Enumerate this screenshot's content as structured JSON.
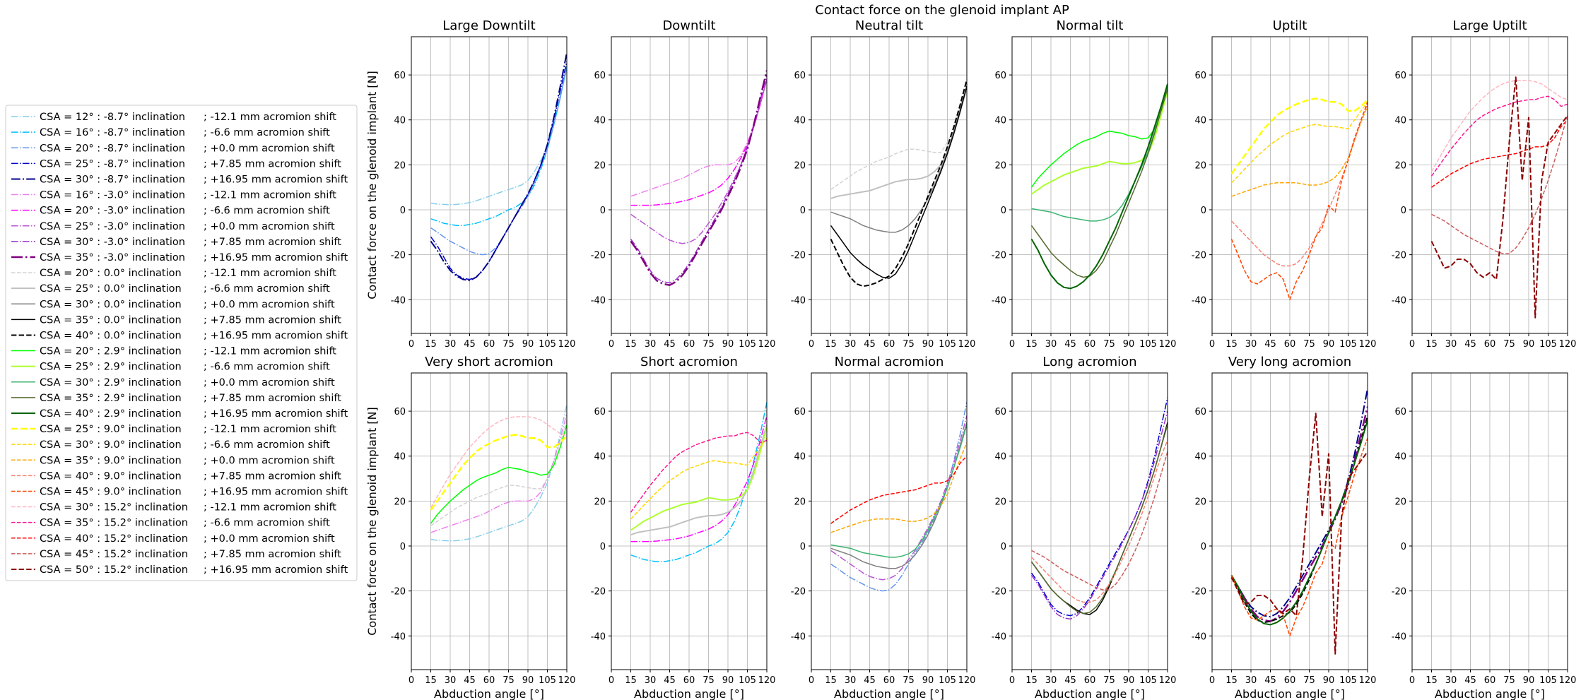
{
  "figure_title": "Contact force on the glenoid implant AP",
  "chart_data": {
    "type": "line",
    "title": "Contact force on the glenoid implant AP",
    "shared_axes": {
      "xlabel": "Abduction angle [°]",
      "ylabel": "Contact force on the glenoid implant [N]",
      "xlim": [
        0,
        120
      ],
      "ylim": [
        -55,
        77
      ],
      "xticks": [
        0,
        15,
        30,
        45,
        60,
        75,
        90,
        105,
        120
      ],
      "yticks": [
        -40,
        -20,
        0,
        20,
        40,
        60
      ],
      "grid": true
    },
    "x": [
      15,
      20,
      25,
      30,
      35,
      40,
      45,
      50,
      55,
      60,
      65,
      70,
      75,
      80,
      85,
      90,
      95,
      100,
      105,
      110,
      115,
      120
    ],
    "series": [
      {
        "name": "CSA = 12° : -8.7° inclination    ; -12.1 mm acromion shift",
        "color": "#87ceeb",
        "dash": "dashdot",
        "width": 1.5,
        "values": [
          3,
          2.5,
          2.4,
          2.3,
          2.4,
          2.7,
          3.2,
          4,
          5,
          6,
          7,
          8,
          9,
          10,
          11,
          13,
          17,
          22,
          28,
          38,
          50,
          63
        ]
      },
      {
        "name": "CSA = 16° : -8.7° inclination    ; -6.6 mm acromion shift",
        "color": "#00bfff",
        "dash": "dashdot",
        "width": 1.5,
        "values": [
          -4,
          -5,
          -6,
          -6.5,
          -7,
          -7,
          -6.5,
          -6,
          -5,
          -4,
          -3,
          -1.5,
          0,
          1,
          3,
          6,
          11,
          18,
          27,
          38,
          50,
          64
        ]
      },
      {
        "name": "CSA = 20° : -8.7° inclination    ; +0.0 mm acromion shift",
        "color": "#6495ed",
        "dash": "dashdot",
        "width": 1.5,
        "values": [
          -8,
          -10,
          -12,
          -14,
          -15.5,
          -17,
          -18.5,
          -19.5,
          -20,
          -19.5,
          -17,
          -13,
          -8,
          -3,
          1,
          6,
          12,
          19,
          27,
          38,
          50,
          64
        ]
      },
      {
        "name": "CSA = 25° : -8.7° inclination    ; +7.85 mm acromion shift",
        "color": "#0000cd",
        "dash": "dashdot",
        "width": 1.5,
        "values": [
          -12,
          -16,
          -21,
          -26,
          -29,
          -30.5,
          -31,
          -30,
          -27,
          -23,
          -18,
          -13,
          -8,
          -3,
          2,
          7,
          13,
          20,
          29,
          40,
          53,
          66
        ]
      },
      {
        "name": "CSA = 30° : -8.7° inclination    ; +16.95 mm acromion shift",
        "color": "#00008b",
        "dash": "dashdot",
        "width": 2,
        "values": [
          -14,
          -18,
          -23,
          -27,
          -29.5,
          -31,
          -31.5,
          -30,
          -27,
          -23,
          -18,
          -13,
          -8,
          -3,
          2,
          7,
          13,
          20,
          29,
          41,
          55,
          70
        ]
      },
      {
        "name": "CSA = 16° : -3.0° inclination    ; -12.1 mm acromion shift",
        "color": "#ee82ee",
        "dash": "dashdot",
        "width": 1.5,
        "values": [
          6,
          7,
          8,
          9,
          10,
          11,
          12,
          13,
          14,
          15.5,
          17,
          18.5,
          19.5,
          20,
          20,
          20,
          21,
          24,
          30,
          38,
          48,
          59
        ]
      },
      {
        "name": "CSA = 20° : -3.0° inclination    ; -6.6 mm acromion shift",
        "color": "#ff00ff",
        "dash": "dashdot",
        "width": 1.5,
        "values": [
          2,
          2,
          2,
          2,
          2.2,
          2.5,
          2.8,
          3.2,
          3.8,
          4.5,
          5.5,
          6.5,
          7.5,
          9,
          11,
          14,
          18,
          23,
          29,
          37,
          47,
          58
        ]
      },
      {
        "name": "CSA = 25° : -3.0° inclination    ; +0.0 mm acromion shift",
        "color": "#ba55d3",
        "dash": "dashdot",
        "width": 1.5,
        "values": [
          -2,
          -4,
          -6,
          -8,
          -10,
          -12,
          -13.5,
          -14.5,
          -15,
          -14.5,
          -13,
          -10,
          -6,
          -2,
          3,
          8,
          14,
          20,
          28,
          37,
          47,
          58
        ]
      },
      {
        "name": "CSA = 30° : -3.0° inclination    ; +7.85 mm acromion shift",
        "color": "#9932cc",
        "dash": "dashdot",
        "width": 1.5,
        "values": [
          -13,
          -17,
          -22,
          -27,
          -30.5,
          -32,
          -32.5,
          -31,
          -28,
          -24,
          -19,
          -14,
          -9,
          -4,
          1,
          7,
          13,
          20,
          28,
          38,
          49,
          60
        ]
      },
      {
        "name": "CSA = 35° : -3.0° inclination    ; +16.95 mm acromion shift",
        "color": "#800080",
        "dash": "dashdot",
        "width": 2.5,
        "values": [
          -14,
          -18,
          -23,
          -28,
          -31.5,
          -33,
          -33.5,
          -32,
          -29,
          -25,
          -20,
          -15,
          -10,
          -5,
          0,
          6,
          12,
          19,
          27,
          38,
          50,
          62
        ]
      },
      {
        "name": "CSA = 20° : 0.0° inclination    ; -12.1 mm acromion shift",
        "color": "#d3d3d3",
        "dash": "dashed",
        "width": 1.5,
        "values": [
          9,
          11,
          13,
          15,
          17,
          18.5,
          20,
          21.5,
          22.5,
          23.5,
          25,
          26,
          27,
          27,
          26.5,
          26,
          25.5,
          25.5,
          30,
          37,
          46,
          56
        ]
      },
      {
        "name": "CSA = 25° : 0.0° inclination    ; -6.6 mm acromion shift",
        "color": "#c0c0c0",
        "dash": "solid",
        "width": 2,
        "values": [
          5,
          6,
          6.5,
          7,
          7.5,
          8,
          8.5,
          9.5,
          10.5,
          11.5,
          12.5,
          13,
          13.5,
          13.5,
          14,
          15,
          17,
          20,
          25,
          34,
          44,
          54
        ]
      },
      {
        "name": "CSA = 30° : 0.0° inclination    ; +0.0 mm acromion shift",
        "color": "#808080",
        "dash": "solid",
        "width": 1.5,
        "values": [
          -1,
          -2,
          -3,
          -4,
          -5.5,
          -7,
          -8,
          -9,
          -9.5,
          -10,
          -10,
          -9,
          -7,
          -4,
          0,
          5,
          11,
          18,
          26,
          35,
          45,
          55
        ]
      },
      {
        "name": "CSA = 35° : 0.0° inclination    ; +7.85 mm acromion shift",
        "color": "#000000",
        "dash": "solid",
        "width": 1.5,
        "values": [
          -7,
          -11,
          -15,
          -19,
          -22,
          -24.5,
          -26.5,
          -28.5,
          -30,
          -30.5,
          -28.5,
          -24,
          -18,
          -11,
          -4,
          3,
          10,
          17,
          25,
          34,
          44,
          55
        ]
      },
      {
        "name": "CSA = 40° : 0.0° inclination    ; +16.95 mm acromion shift",
        "color": "#000000",
        "dash": "dashed",
        "width": 2,
        "values": [
          -13,
          -19,
          -25,
          -30,
          -33,
          -34,
          -33.5,
          -32.5,
          -31,
          -29.5,
          -26,
          -21,
          -15,
          -8,
          -1,
          6,
          13,
          20,
          28,
          37,
          47,
          58
        ]
      },
      {
        "name": "CSA = 20° : 2.9° inclination    ; -12.1 mm acromion shift",
        "color": "#00ff00",
        "dash": "solid",
        "width": 1.5,
        "values": [
          10,
          14,
          17,
          20,
          22.5,
          25,
          27,
          29,
          30.5,
          31.5,
          32.5,
          34,
          35,
          34.5,
          34,
          33,
          32.5,
          31.5,
          32,
          36,
          44,
          54
        ]
      },
      {
        "name": "CSA = 25° : 2.9° inclination    ; -6.6 mm acromion shift",
        "color": "#adff2f",
        "dash": "solid",
        "width": 2,
        "values": [
          7,
          9,
          11,
          12.5,
          14,
          15.5,
          16.5,
          17.5,
          18.5,
          19,
          19.5,
          20.5,
          21.5,
          21,
          20.5,
          20.5,
          21,
          22,
          25,
          32,
          42,
          53
        ]
      },
      {
        "name": "CSA = 30° : 2.9° inclination    ; +0.0 mm acromion shift",
        "color": "#3cb371",
        "dash": "solid",
        "width": 1.5,
        "values": [
          0.5,
          0,
          -0.5,
          -1,
          -2,
          -3,
          -3.5,
          -4,
          -4.5,
          -5,
          -5,
          -4.5,
          -3.5,
          -1.5,
          2,
          7,
          13,
          19,
          26,
          35,
          44,
          54
        ]
      },
      {
        "name": "CSA = 35° : 2.9° inclination    ; +7.85 mm acromion shift",
        "color": "#556b2f",
        "dash": "solid",
        "width": 1.5,
        "values": [
          -7,
          -11,
          -15,
          -19,
          -22,
          -24.5,
          -27,
          -29,
          -30,
          -29.5,
          -27,
          -23,
          -17,
          -11,
          -4,
          3,
          10,
          17,
          25,
          34,
          44,
          54
        ]
      },
      {
        "name": "CSA = 40° : 2.9° inclination    ; +16.95 mm acromion shift",
        "color": "#006400",
        "dash": "solid",
        "width": 2,
        "values": [
          -13,
          -18,
          -24,
          -29,
          -32.5,
          -34.5,
          -35,
          -34,
          -32,
          -29,
          -25,
          -20,
          -14,
          -8,
          -1,
          6,
          13,
          20,
          28,
          37,
          46,
          56
        ]
      },
      {
        "name": "CSA = 25° : 9.0° inclination    ; -12.1 mm acromion shift",
        "color": "#ffff00",
        "dash": "dashed",
        "width": 2.5,
        "values": [
          16,
          20,
          24,
          28,
          32,
          36,
          39,
          42,
          44,
          45.5,
          47,
          48,
          49,
          49.5,
          49,
          48,
          48,
          47,
          44,
          44,
          46,
          49
        ]
      },
      {
        "name": "CSA = 30° : 9.0° inclination    ; -6.6 mm acromion shift",
        "color": "#ffd700",
        "dash": "dashed",
        "width": 1.5,
        "values": [
          12,
          15,
          18,
          21,
          24,
          26.5,
          29,
          31,
          33,
          34.5,
          35.5,
          36.5,
          37.5,
          38,
          37.5,
          37,
          37,
          36.5,
          36,
          40,
          44,
          48
        ]
      },
      {
        "name": "CSA = 35° : 9.0° inclination    ; +0.0 mm acromion shift",
        "color": "#ffa500",
        "dash": "dashed",
        "width": 1.5,
        "values": [
          6,
          7,
          8,
          9,
          10,
          11,
          11.5,
          12,
          12,
          12,
          12,
          11.5,
          11,
          11,
          11.5,
          12.5,
          14.5,
          18,
          23,
          31,
          39,
          46
        ]
      },
      {
        "name": "CSA = 40° : 9.0° inclination    ; +7.85 mm acromion shift",
        "color": "#fa8072",
        "dash": "dashed",
        "width": 1.5,
        "values": [
          -5,
          -8,
          -11,
          -14,
          -17,
          -20,
          -22,
          -24,
          -25,
          -25,
          -24,
          -21,
          -17,
          -12,
          -6,
          0,
          7,
          14,
          22,
          31,
          40,
          47
        ]
      },
      {
        "name": "CSA = 45° : 9.0° inclination    ; +16.95 mm acromion shift",
        "color": "#ff4500",
        "dash": "dashed",
        "width": 1.5,
        "values": [
          -13,
          -20,
          -27,
          -32,
          -33,
          -31,
          -29,
          -28,
          -31,
          -40,
          -32,
          -27,
          -20,
          -12,
          -8,
          2,
          -1,
          13,
          22,
          32,
          40,
          48
        ]
      },
      {
        "name": "CSA = 30° : 15.2° inclination    ; -12.1 mm acromion shift",
        "color": "#ffb6c1",
        "dash": "dashed",
        "width": 1.5,
        "values": [
          17,
          22,
          27,
          32,
          36,
          40,
          44,
          47,
          50,
          52.5,
          54.5,
          56,
          57,
          57.5,
          57.5,
          57.5,
          57,
          56,
          54,
          52,
          50,
          49
        ]
      },
      {
        "name": "CSA = 35° : 15.2° inclination    ; -6.6 mm acromion shift",
        "color": "#ff1493",
        "dash": "dashed",
        "width": 1.5,
        "values": [
          15,
          19,
          23,
          27,
          30.5,
          34,
          37,
          40,
          42,
          43.5,
          45,
          46,
          47,
          48,
          48.5,
          49,
          49,
          50,
          50.5,
          49,
          46,
          47
        ]
      },
      {
        "name": "CSA = 40° : 15.2° inclination    ; +0.0 mm acromion shift",
        "color": "#ff0000",
        "dash": "dashed",
        "width": 1.5,
        "values": [
          10,
          12,
          14,
          16,
          17.5,
          19,
          20.5,
          21.5,
          22.5,
          23,
          23.5,
          24,
          24.5,
          25,
          26,
          27,
          28,
          28,
          29,
          32,
          37,
          40
        ]
      },
      {
        "name": "CSA = 45° : 15.2° inclination    ; +7.85 mm acromion shift",
        "color": "#cd5c5c",
        "dash": "dashed",
        "width": 1.5,
        "values": [
          -2,
          -3.5,
          -5,
          -7,
          -9,
          -11,
          -12.5,
          -14,
          -15.5,
          -17,
          -18.5,
          -19.5,
          -19.5,
          -17,
          -13,
          -8,
          -2,
          5,
          13,
          22,
          32,
          42
        ]
      },
      {
        "name": "CSA = 50° : 15.2° inclination    ; +16.95 mm acromion shift",
        "color": "#8b0000",
        "dash": "dashed",
        "width": 2,
        "values": [
          -14,
          -20,
          -26,
          -25,
          -22,
          -22,
          -24,
          -28,
          -30,
          -28,
          -31,
          -5,
          30,
          59,
          13,
          41,
          -48,
          13,
          30,
          34,
          38,
          42
        ]
      }
    ],
    "legend": {
      "placement": "left, outside"
    },
    "panels": [
      {
        "title": "Large Downtilt",
        "series_idx": [
          0,
          1,
          2,
          3,
          4
        ]
      },
      {
        "title": "Downtilt",
        "series_idx": [
          5,
          6,
          7,
          8,
          9
        ]
      },
      {
        "title": "Neutral tilt",
        "series_idx": [
          10,
          11,
          12,
          13,
          14
        ]
      },
      {
        "title": "Normal tilt",
        "series_idx": [
          15,
          16,
          17,
          18,
          19
        ]
      },
      {
        "title": "Uptilt",
        "series_idx": [
          20,
          21,
          22,
          23,
          24
        ]
      },
      {
        "title": "Large Uptilt",
        "series_idx": [
          25,
          26,
          27,
          28,
          29
        ]
      },
      {
        "title": "Very short acromion",
        "series_idx": [
          0,
          5,
          10,
          15,
          20,
          25
        ]
      },
      {
        "title": "Short acromion",
        "series_idx": [
          1,
          6,
          11,
          16,
          21,
          26
        ]
      },
      {
        "title": "Normal acromion",
        "series_idx": [
          2,
          7,
          12,
          17,
          22,
          27
        ]
      },
      {
        "title": "Long acromion",
        "series_idx": [
          3,
          8,
          13,
          18,
          23,
          28
        ]
      },
      {
        "title": "Very long acromion",
        "series_idx": [
          4,
          9,
          14,
          19,
          24,
          29
        ]
      },
      {
        "title": "",
        "series_idx": []
      }
    ]
  }
}
